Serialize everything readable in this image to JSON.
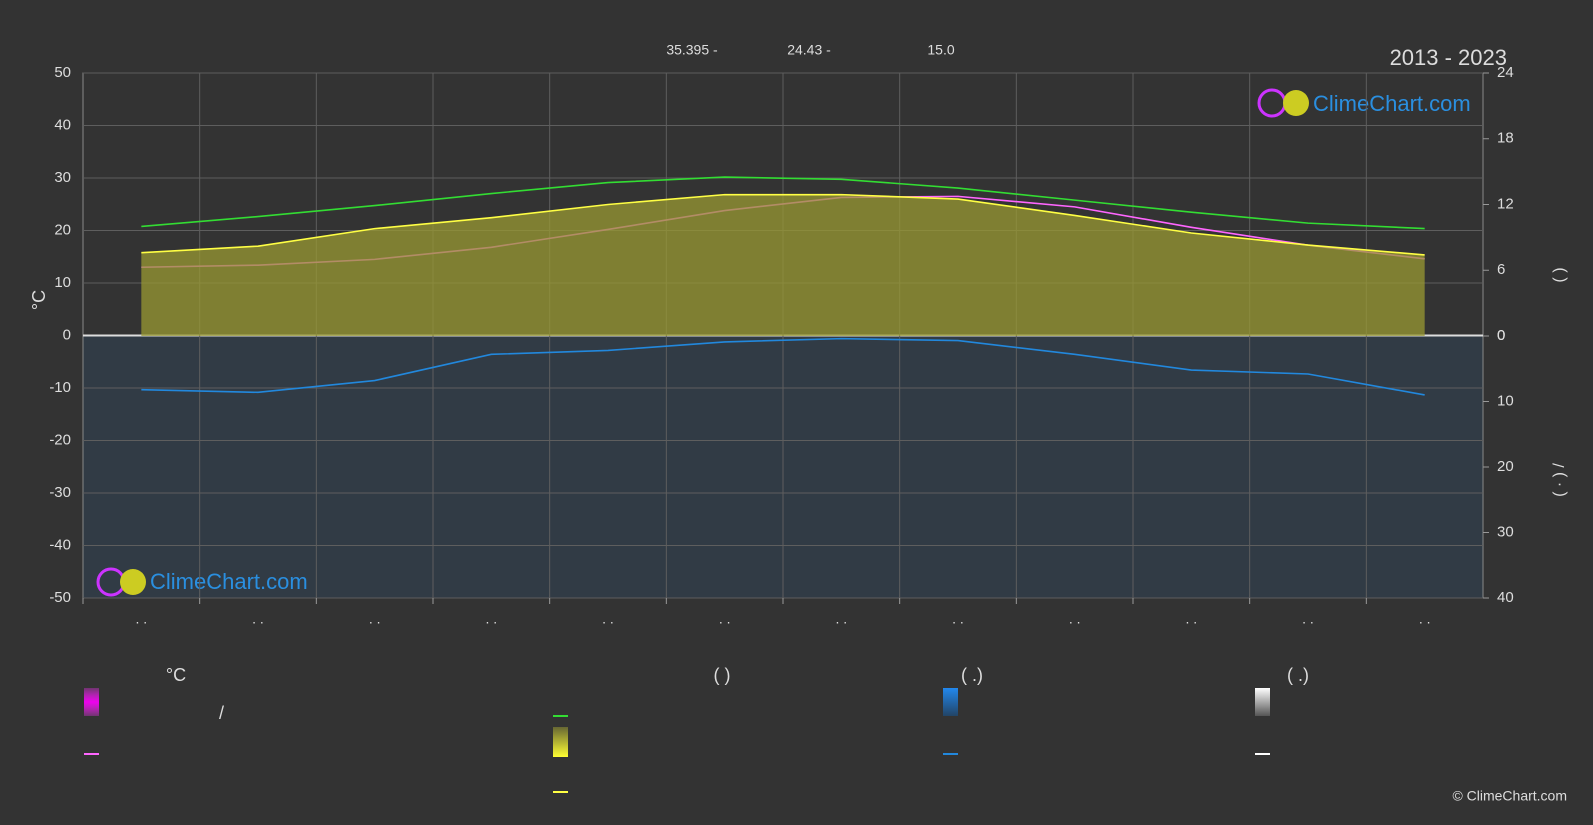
{
  "chart_data": {
    "type": "line",
    "year_range": "2013 - 2023",
    "annotations": [
      "35.395 -",
      "24.43 -",
      "15.0"
    ],
    "ylabel": "°C",
    "y2label": "(          )",
    "y3label": "( · )  /",
    "logo": "ClimeChart.com",
    "copyright": "© ClimeChart.com",
    "categories": [
      ". .",
      ". .",
      ". .",
      ". .",
      ". .",
      ". .",
      ". .",
      ". .",
      ". .",
      ". .",
      ". .",
      ". ."
    ],
    "ylim": [
      -50,
      50
    ],
    "yticks": [
      50,
      40,
      30,
      20,
      10,
      0,
      -10,
      -20,
      -30,
      -40,
      -50
    ],
    "y2lim": [
      0,
      24
    ],
    "y2ticks": [
      24,
      18,
      12,
      6,
      0
    ],
    "y3lim": [
      0,
      40
    ],
    "y3ticks": [
      0,
      10,
      20,
      30,
      40
    ],
    "grid": true,
    "series": [
      {
        "color": "#ff66ff",
        "values": [
          13.0,
          13.4,
          14.5,
          16.8,
          20.2,
          23.8,
          26.3,
          26.5,
          24.5,
          20.6,
          17.2,
          14.6
        ]
      },
      {
        "color": "#33dd33",
        "axis": "y2",
        "values": [
          10.0,
          10.9,
          11.9,
          13.0,
          14.0,
          14.5,
          14.3,
          13.5,
          12.4,
          11.3,
          10.3,
          9.8
        ]
      },
      {
        "color": "#ffff44",
        "axis": "y2",
        "area": true,
        "values": [
          7.6,
          8.2,
          9.8,
          10.8,
          12.0,
          12.9,
          12.9,
          12.5,
          11.0,
          9.4,
          8.3,
          7.4
        ]
      },
      {
        "color": "#2288dd",
        "axis": "y3",
        "values": [
          8.2,
          8.6,
          6.8,
          2.8,
          2.2,
          0.9,
          0.4,
          0.7,
          2.8,
          5.2,
          5.8,
          9.0
        ]
      }
    ],
    "legend_headers": [
      "°C",
      "(          )",
      "(   .)",
      "(   .)"
    ],
    "legend_text": "/"
  }
}
